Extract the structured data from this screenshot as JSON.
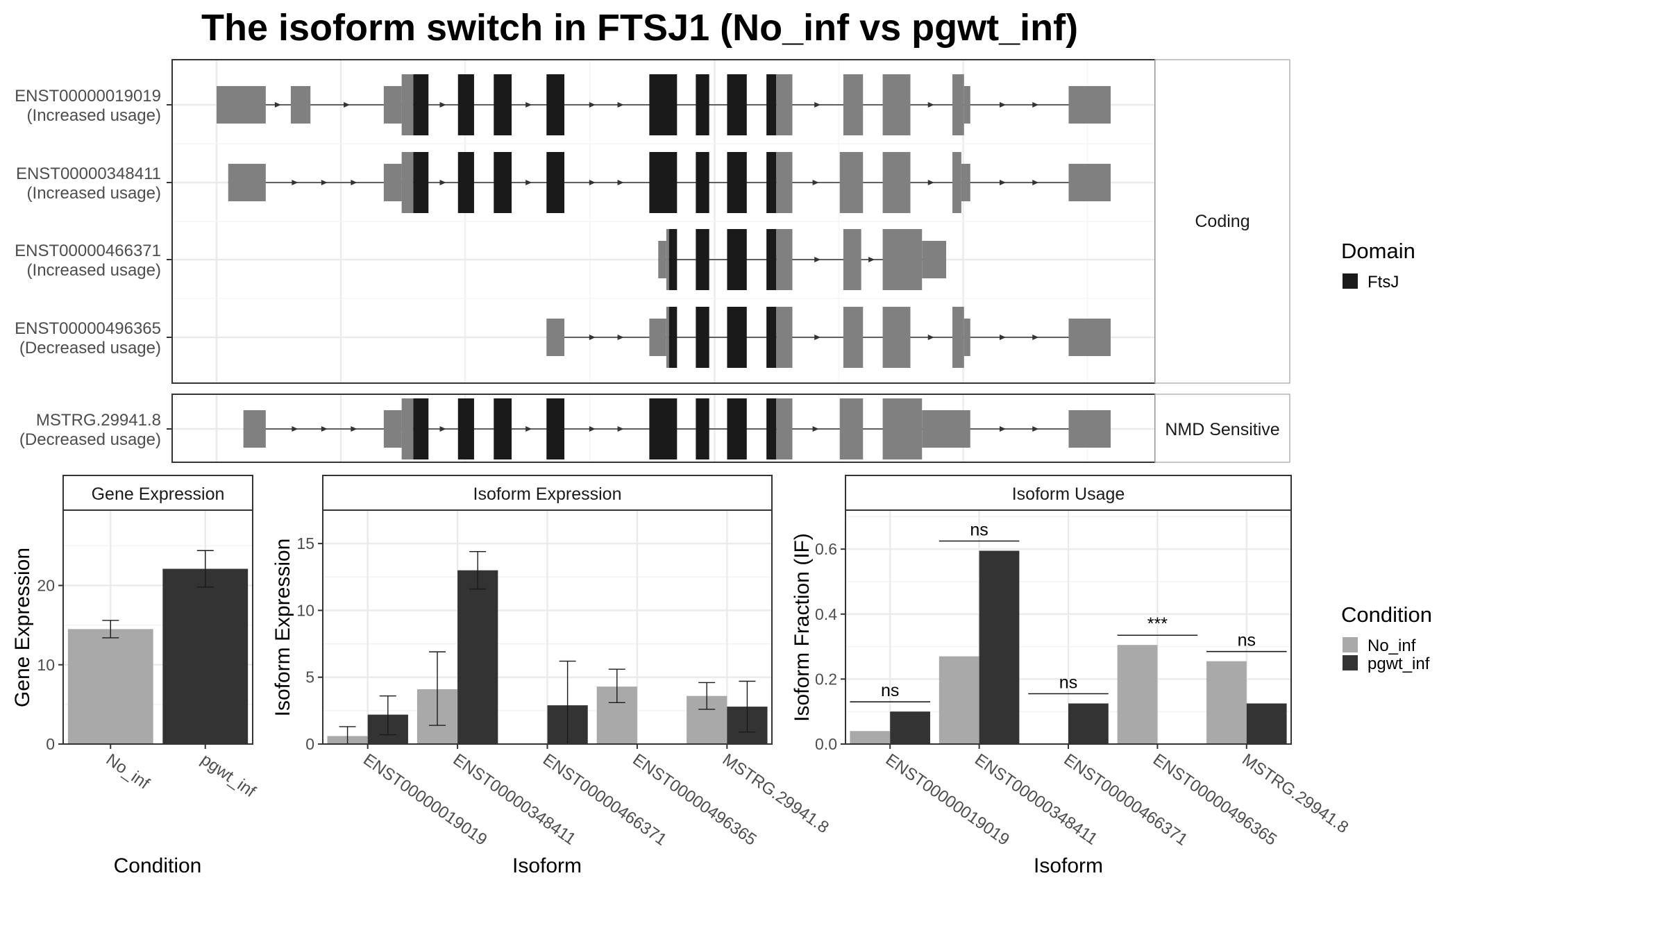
{
  "title": "The isoform switch in FTSJ1 (No_inf vs pgwt_inf)",
  "colors": {
    "exon": "#808080",
    "domain": "#1a1a1a",
    "no_inf": "#a9a9a9",
    "pgwt_inf": "#333333",
    "grid": "#ebebeb",
    "strip": "#ffffff",
    "border": "#333333"
  },
  "structure": {
    "group_labels": [
      "Coding",
      "NMD Sensitive"
    ],
    "transcripts": [
      {
        "id": "ENST00000019019",
        "usage": "(Increased usage)",
        "group": "Coding",
        "exons": [
          [
            0.0,
            0.055,
            "u"
          ],
          [
            0.083,
            0.105,
            "u"
          ],
          [
            0.187,
            0.207,
            "u"
          ],
          [
            0.207,
            0.22,
            "cl"
          ],
          [
            0.22,
            0.237,
            "d"
          ],
          [
            0.27,
            0.288,
            "d"
          ],
          [
            0.31,
            0.33,
            "d"
          ],
          [
            0.369,
            0.389,
            "d"
          ],
          [
            0.484,
            0.515,
            "d"
          ],
          [
            0.536,
            0.551,
            "d"
          ],
          [
            0.571,
            0.593,
            "d"
          ],
          [
            0.615,
            0.626,
            "d"
          ],
          [
            0.626,
            0.644,
            "cl"
          ],
          [
            0.701,
            0.723,
            "c"
          ],
          [
            0.745,
            0.776,
            "c"
          ],
          [
            0.823,
            0.836,
            "c"
          ],
          [
            0.836,
            0.843,
            "u"
          ],
          [
            0.953,
            1.0,
            "u"
          ]
        ]
      },
      {
        "id": "ENST00000348411",
        "usage": "(Increased usage)",
        "group": "Coding",
        "exons": [
          [
            0.013,
            0.055,
            "u"
          ],
          [
            0.187,
            0.207,
            "u"
          ],
          [
            0.207,
            0.22,
            "cl"
          ],
          [
            0.22,
            0.237,
            "d"
          ],
          [
            0.27,
            0.288,
            "d"
          ],
          [
            0.31,
            0.33,
            "d"
          ],
          [
            0.369,
            0.389,
            "d"
          ],
          [
            0.484,
            0.515,
            "d"
          ],
          [
            0.536,
            0.551,
            "d"
          ],
          [
            0.571,
            0.593,
            "d"
          ],
          [
            0.615,
            0.626,
            "d"
          ],
          [
            0.626,
            0.644,
            "cl"
          ],
          [
            0.697,
            0.723,
            "c"
          ],
          [
            0.745,
            0.776,
            "c"
          ],
          [
            0.823,
            0.833,
            "c"
          ],
          [
            0.833,
            0.843,
            "u"
          ],
          [
            0.953,
            1.0,
            "u"
          ]
        ]
      },
      {
        "id": "ENST00000466371",
        "usage": "(Increased usage)",
        "group": "Coding",
        "exons": [
          [
            0.494,
            0.503,
            "u"
          ],
          [
            0.503,
            0.506,
            "cl"
          ],
          [
            0.506,
            0.515,
            "d"
          ],
          [
            0.536,
            0.551,
            "d"
          ],
          [
            0.571,
            0.593,
            "d"
          ],
          [
            0.615,
            0.626,
            "d"
          ],
          [
            0.626,
            0.644,
            "cl"
          ],
          [
            0.701,
            0.721,
            "c"
          ],
          [
            0.745,
            0.789,
            "c"
          ],
          [
            0.789,
            0.816,
            "u"
          ]
        ]
      },
      {
        "id": "ENST00000496365",
        "usage": "(Decreased usage)",
        "group": "Coding",
        "exons": [
          [
            0.369,
            0.389,
            "u"
          ],
          [
            0.484,
            0.503,
            "u"
          ],
          [
            0.503,
            0.506,
            "cl"
          ],
          [
            0.506,
            0.515,
            "d"
          ],
          [
            0.536,
            0.551,
            "d"
          ],
          [
            0.571,
            0.593,
            "d"
          ],
          [
            0.615,
            0.626,
            "d"
          ],
          [
            0.626,
            0.644,
            "cl"
          ],
          [
            0.701,
            0.723,
            "c"
          ],
          [
            0.745,
            0.776,
            "c"
          ],
          [
            0.823,
            0.836,
            "c"
          ],
          [
            0.836,
            0.843,
            "u"
          ],
          [
            0.953,
            1.0,
            "u"
          ]
        ]
      },
      {
        "id": "MSTRG.29941.8",
        "usage": "(Decreased usage)",
        "group": "NMD Sensitive",
        "exons": [
          [
            0.03,
            0.055,
            "u"
          ],
          [
            0.187,
            0.207,
            "u"
          ],
          [
            0.207,
            0.22,
            "cl"
          ],
          [
            0.22,
            0.237,
            "d"
          ],
          [
            0.27,
            0.288,
            "d"
          ],
          [
            0.31,
            0.33,
            "d"
          ],
          [
            0.369,
            0.389,
            "d"
          ],
          [
            0.484,
            0.515,
            "d"
          ],
          [
            0.536,
            0.551,
            "d"
          ],
          [
            0.571,
            0.593,
            "d"
          ],
          [
            0.615,
            0.626,
            "d"
          ],
          [
            0.626,
            0.644,
            "cl"
          ],
          [
            0.697,
            0.723,
            "c"
          ],
          [
            0.745,
            0.789,
            "c"
          ],
          [
            0.789,
            0.843,
            "u"
          ],
          [
            0.953,
            1.0,
            "u"
          ]
        ]
      }
    ],
    "legend": {
      "title": "Domain",
      "items": [
        {
          "label": "FtsJ",
          "color": "#1a1a1a"
        }
      ]
    }
  },
  "chart_data": [
    {
      "type": "bar",
      "title": "Gene Expression",
      "xlabel": "Condition",
      "ylabel": "Gene Expression",
      "categories": [
        "No_inf",
        "pgwt_inf"
      ],
      "values": [
        14.5,
        22.1
      ],
      "errors": [
        [
          13.4,
          15.6
        ],
        [
          19.8,
          24.4
        ]
      ],
      "colors": [
        "#a9a9a9",
        "#333333"
      ],
      "ylim": [
        0,
        29.5
      ],
      "yticks": [
        0,
        10,
        20
      ],
      "grid": true
    },
    {
      "type": "bar",
      "title": "Isoform Expression",
      "xlabel": "Isoform",
      "ylabel": "Isoform Expression",
      "categories": [
        "ENST00000019019",
        "ENST00000348411",
        "ENST00000466371",
        "ENST00000496365",
        "MSTRG.29941.8"
      ],
      "series": [
        {
          "name": "No_inf",
          "values": [
            0.6,
            4.1,
            0.0,
            4.3,
            3.6
          ],
          "errors": [
            [
              0.0,
              1.3
            ],
            [
              1.4,
              6.9
            ],
            [
              0.0,
              0.0
            ],
            [
              3.1,
              5.6
            ],
            [
              2.6,
              4.6
            ]
          ]
        },
        {
          "name": "pgwt_inf",
          "values": [
            2.2,
            13.0,
            2.9,
            0.0,
            2.8
          ],
          "errors": [
            [
              0.7,
              3.6
            ],
            [
              11.6,
              14.4
            ],
            [
              0.0,
              6.2
            ],
            [
              0.0,
              0.0
            ],
            [
              0.9,
              4.7
            ]
          ]
        }
      ],
      "ylim": [
        0,
        17.5
      ],
      "yticks": [
        0,
        5,
        10,
        15
      ],
      "grid": true
    },
    {
      "type": "bar",
      "title": "Isoform Usage",
      "xlabel": "Isoform",
      "ylabel": "Isoform Fraction (IF)",
      "categories": [
        "ENST00000019019",
        "ENST00000348411",
        "ENST00000466371",
        "ENST00000496365",
        "MSTRG.29941.8"
      ],
      "series": [
        {
          "name": "No_inf",
          "values": [
            0.04,
            0.27,
            0.0,
            0.305,
            0.255
          ]
        },
        {
          "name": "pgwt_inf",
          "values": [
            0.1,
            0.595,
            0.125,
            0.0,
            0.125
          ]
        }
      ],
      "significance": [
        "ns",
        "ns",
        "ns",
        "***",
        "ns"
      ],
      "ylim": [
        0,
        0.72
      ],
      "yticks": [
        0.0,
        0.2,
        0.4,
        0.6
      ],
      "yticklabels": [
        "0.0",
        "0.2",
        "0.4",
        "0.6"
      ],
      "grid": true
    }
  ],
  "condition_legend": {
    "title": "Condition",
    "items": [
      {
        "label": "No_inf",
        "color": "#a9a9a9"
      },
      {
        "label": "pgwt_inf",
        "color": "#333333"
      }
    ]
  }
}
